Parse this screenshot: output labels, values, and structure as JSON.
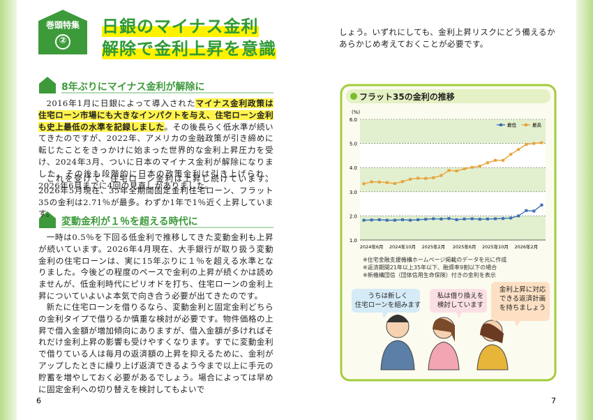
{
  "header": {
    "badge": "巻頭特集",
    "number": "②",
    "title_lines": [
      "日銀のマイナス金利",
      "解除で金利上昇を意識"
    ]
  },
  "sections": [
    {
      "heading": "8年ぶりにマイナス金利が解除に",
      "paragraphs": [
        [
          {
            "text": "2016年1月に日銀によって導入された",
            "highlight": false
          },
          {
            "text": "マイナス金利政策は住宅ローン市場にも大きなインパクトを与え、住宅ローン金利も史上最低の水準を記録しました",
            "highlight": true
          },
          {
            "text": "。その後長らく低水準が続いてきたのですが、2022年、アメリカの金融政策が引き締めに転じたことをきっかけに始まった世界的な金利上昇圧力を受け、2024年3月、ついに日本のマイナス金利が解除になりました。その後も段階的に日本の政策金利は引き上げられ、2026年6月までに4回の見直しがありました。",
            "highlight": false
          }
        ],
        [
          {
            "text": "これを受けて、住宅ローン金利は上昇し続けています。2026年5月現在、35年全期間固定金利住宅ローン、フラット35の金利は2.71％が最多。わずか1年で1％近く上昇しています。",
            "highlight": false
          }
        ]
      ]
    },
    {
      "heading": "変動金利が１％を超える時代に",
      "paragraphs": [
        [
          {
            "text": "一時は0.5％を下回る低金利で推移してきた変動金利も上昇が続いています。2026年4月現在、大手銀行が取り扱う変動金利の住宅ローンは、実に15年ぶりに１％を超える水準となりました。今後どの程度のペースで金利の上昇が続くかは読めませんが、低金利時代にピリオドを打ち、住宅ローンの金利上昇についていよいよ本気で向き合う必要が出てきたのです。",
            "highlight": false
          }
        ],
        [
          {
            "text": "新たに住宅ローンを借りるなら、変動金利と固定金利どちらの金利タイプで借りるか慎重な検討が必要です。物件価格の上昇で借入金額が増加傾向にありますが、借入金額が多ければそれだけ金利上昇の影響も受けやすくなります。すでに変動金利で借りている人は毎月の返済額の上昇を抑えるために、金利がアップしたときに繰り上げ返済できるよう今まで以上に手元の貯蓄を増やしておく必要があるでしょう。場合によっては早めに固定金利への切り替えを検討してもよいで",
            "highlight": false
          }
        ]
      ]
    }
  ],
  "continuation": "しょう。いずれにしても、金利上昇リスクにどう備えるかあらかじめ考えておくことが必要です。",
  "chart_data": {
    "type": "line",
    "title": "フラット35の金利の推移",
    "y_label": "(%)",
    "categories": [
      null,
      "2024年6月",
      null,
      null,
      null,
      "2024年10月",
      null,
      null,
      null,
      "2025年2月",
      null,
      null,
      null,
      "2025年6月",
      null,
      null,
      null,
      "2025年10月",
      null,
      null,
      null,
      "2026年2月",
      null,
      null
    ],
    "series": [
      {
        "name": "最低",
        "color": "#3d6fb6",
        "values": [
          1.82,
          1.83,
          1.84,
          1.82,
          1.82,
          1.84,
          1.82,
          1.84,
          1.86,
          1.88,
          1.87,
          1.89,
          1.84,
          1.87,
          1.88,
          1.86,
          1.87,
          1.88,
          1.89,
          1.91,
          2.0,
          2.22,
          2.2,
          2.45
        ]
      },
      {
        "name": "最高",
        "color": "#e8a33a",
        "values": [
          3.33,
          3.41,
          3.4,
          3.38,
          3.34,
          3.42,
          3.52,
          3.56,
          3.55,
          3.58,
          3.67,
          3.88,
          3.86,
          3.95,
          4.01,
          4.06,
          4.2,
          4.3,
          4.3,
          4.55,
          4.75,
          4.96,
          5.0,
          5.03
        ]
      }
    ],
    "ylim": [
      1,
      6
    ],
    "yticks": [
      {
        "value": 1,
        "label": "1.0"
      },
      {
        "value": 2,
        "label": "2.0"
      },
      {
        "value": 3,
        "label": "3.0"
      },
      {
        "value": 4,
        "label": "4.0"
      },
      {
        "value": 5,
        "label": "5.0"
      },
      {
        "value": 6,
        "label": "6.0"
      }
    ],
    "grid": true,
    "legend": "top-right",
    "notes": [
      "※住宅金融支援機構ホームページ掲載のデータを元に作成",
      "※返済期間21年以上35年以下、融資率9割以下の場合",
      "※新機構団信（団体信用生命保険）付きの金利を表示"
    ]
  },
  "bubbles": [
    [
      "うちは新しく",
      "住宅ローンを組みます"
    ],
    [
      "私は借り換えを",
      "検討しています"
    ],
    [
      "金利上昇に対応",
      "できる返済計画",
      "を持ちましょう"
    ]
  ],
  "page_numbers": [
    "6",
    "7"
  ]
}
